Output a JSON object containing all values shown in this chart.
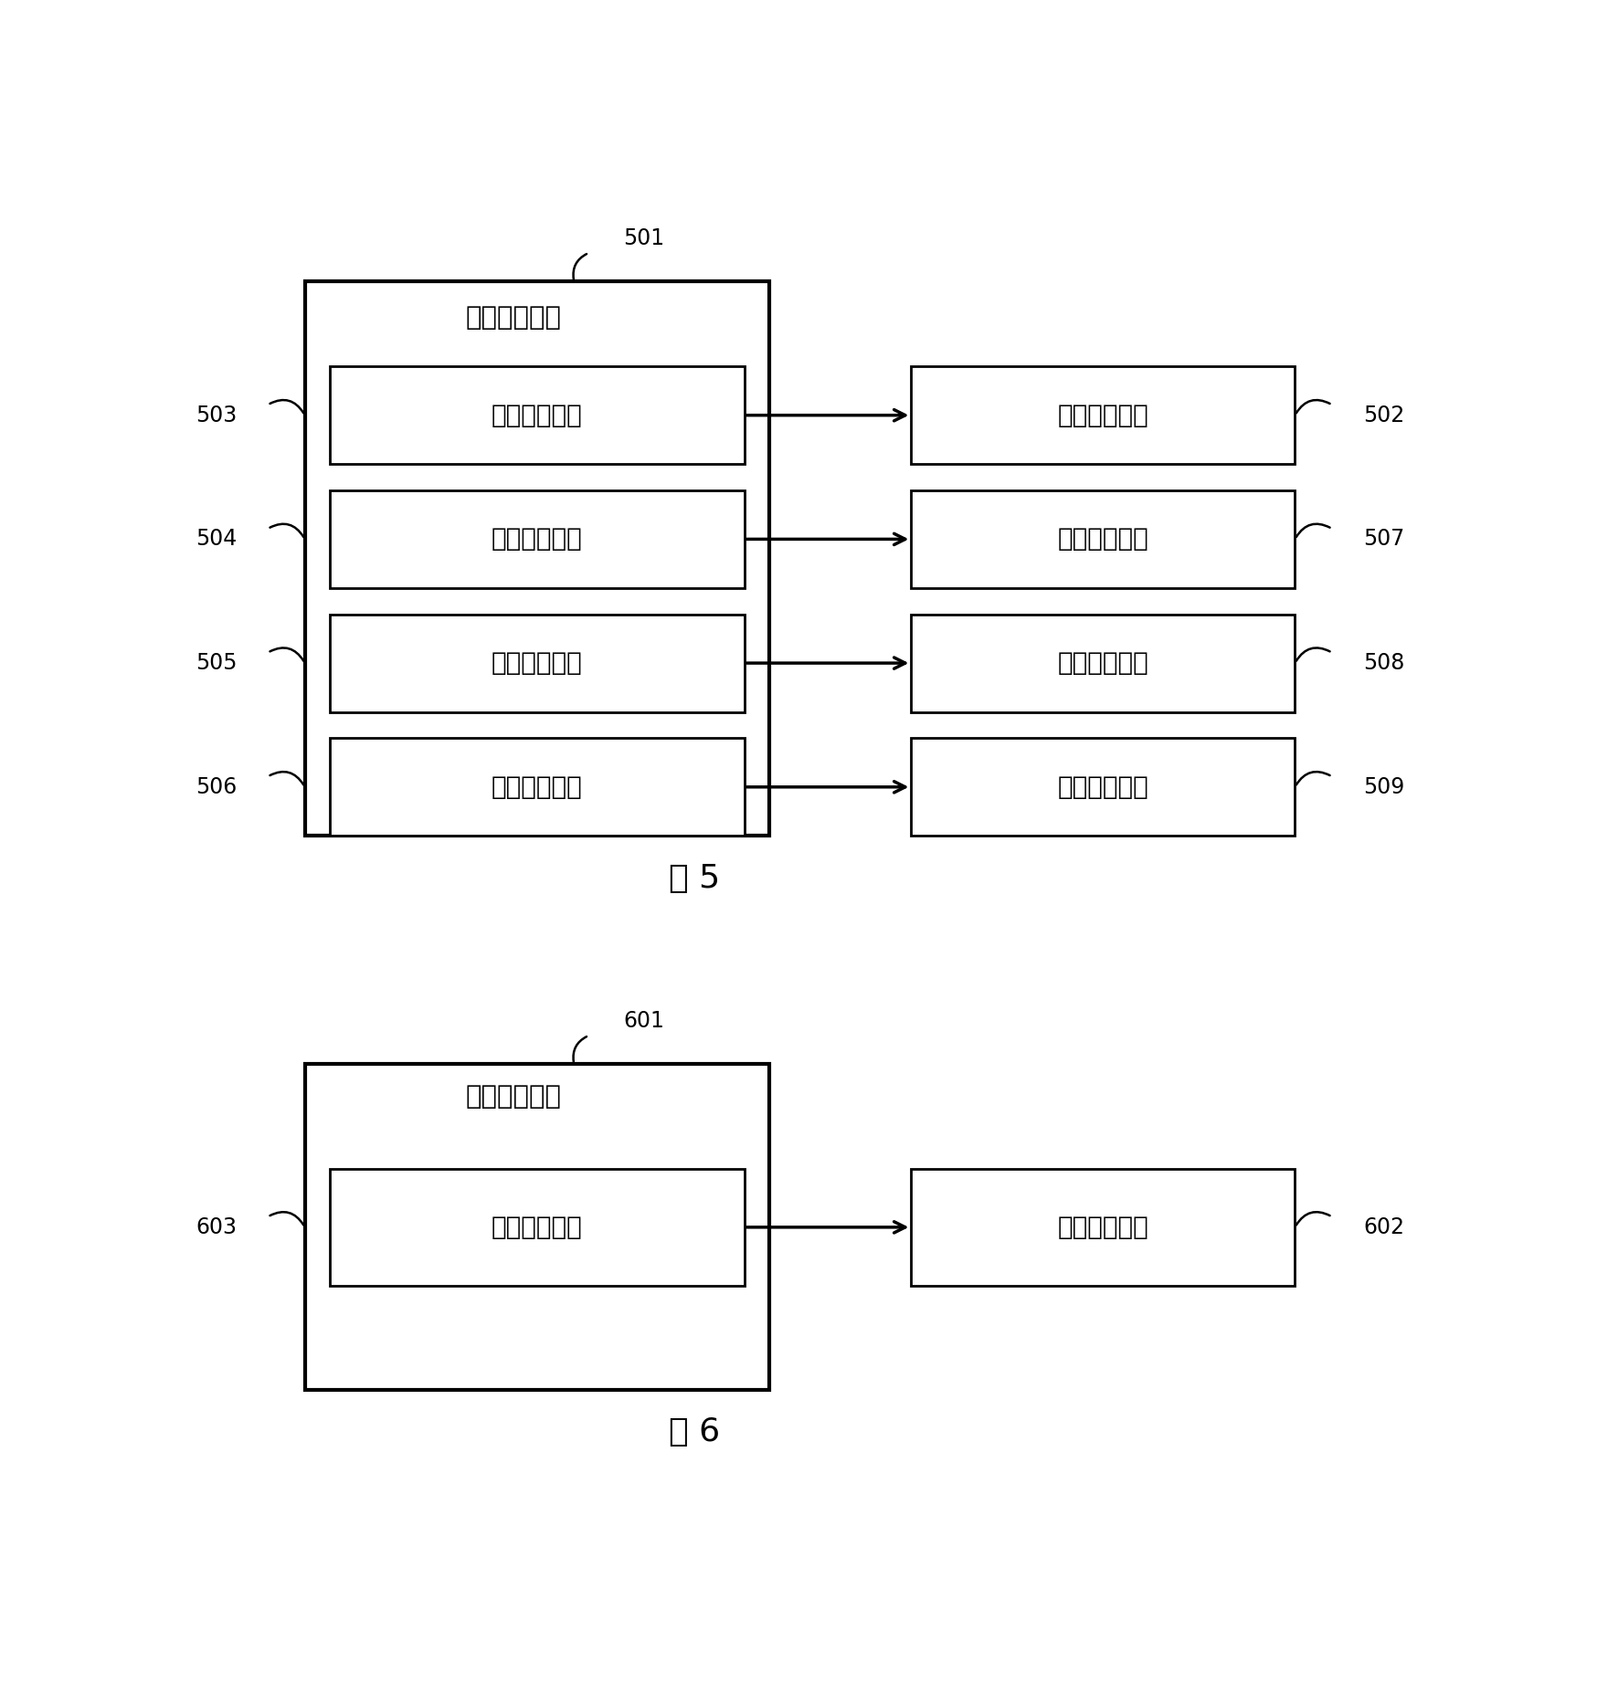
{
  "bg_color": "#ffffff",
  "fig_width": 17.48,
  "fig_height": 18.55,
  "dpi": 100,
  "fig5": {
    "caption": "图 5",
    "outer_label": "信息关联模块",
    "outer_id": "501",
    "inner_labels": [
      "第一关联单元",
      "第二关联单元",
      "第三关联单元",
      "第四关联单元"
    ],
    "inner_ids": [
      "503",
      "504",
      "505",
      "506"
    ],
    "right_labels": [
      "第一通知模块",
      "第二通知模块",
      "第三通知模块",
      "第四通知模块"
    ],
    "right_ids": [
      "502",
      "507",
      "508",
      "509"
    ]
  },
  "fig6": {
    "caption": "图 6",
    "outer_label": "信息关联模块",
    "outer_id": "601",
    "inner_label": "第五关联单元",
    "inner_id": "603",
    "right_label": "第一通知模块",
    "right_id": "602"
  }
}
